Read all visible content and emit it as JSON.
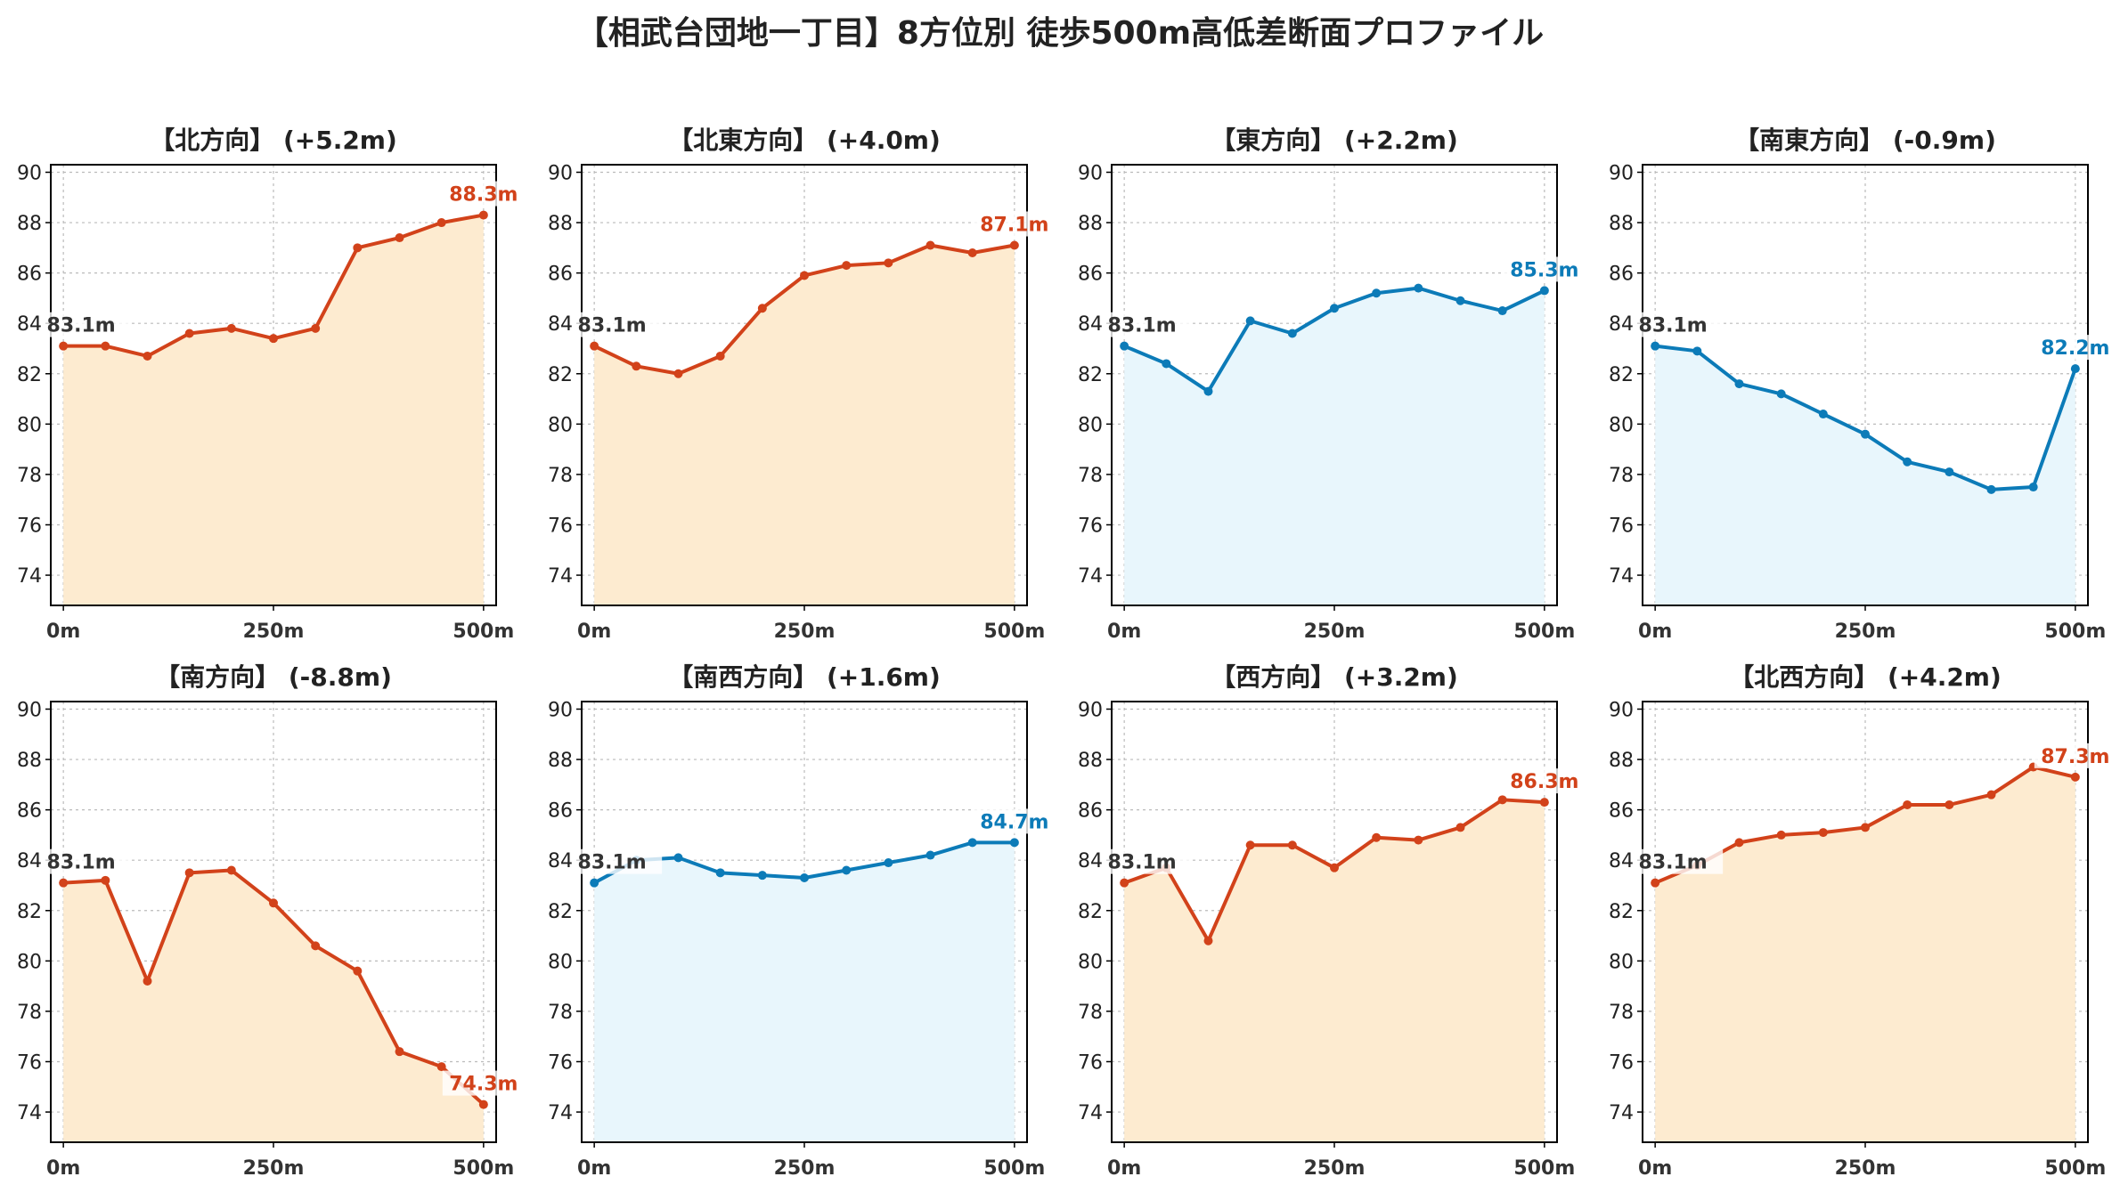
{
  "title": "【相武台団地一丁目】8方位別 徒歩500m高低差断面プロファイル",
  "colors": {
    "up_line": "#d2421a",
    "up_fill": "#fdebd0",
    "down_line": "#0c7bb8",
    "down_fill": "#e8f6fc",
    "start_label": "#333333",
    "grid": "#bbbbbb"
  },
  "chart_data": [
    {
      "type": "line",
      "title": "【北方向】 (+5.2m)",
      "trend": "up",
      "x": [
        0,
        50,
        100,
        150,
        200,
        250,
        300,
        350,
        400,
        450,
        500
      ],
      "values": [
        83.1,
        83.1,
        82.7,
        83.6,
        83.8,
        83.4,
        83.8,
        87.0,
        87.4,
        88.0,
        88.3
      ],
      "start_label": "83.1m",
      "end_label": "88.3m"
    },
    {
      "type": "line",
      "title": "【北東方向】 (+4.0m)",
      "trend": "up",
      "x": [
        0,
        50,
        100,
        150,
        200,
        250,
        300,
        350,
        400,
        450,
        500
      ],
      "values": [
        83.1,
        82.3,
        82.0,
        82.7,
        84.6,
        85.9,
        86.3,
        86.4,
        87.1,
        86.8,
        87.1
      ],
      "start_label": "83.1m",
      "end_label": "87.1m"
    },
    {
      "type": "line",
      "title": "【東方向】 (+2.2m)",
      "trend": "down",
      "x": [
        0,
        50,
        100,
        150,
        200,
        250,
        300,
        350,
        400,
        450,
        500
      ],
      "values": [
        83.1,
        82.4,
        81.3,
        84.1,
        83.6,
        84.6,
        85.2,
        85.4,
        84.9,
        84.5,
        85.3
      ],
      "start_label": "83.1m",
      "end_label": "85.3m"
    },
    {
      "type": "line",
      "title": "【南東方向】 (-0.9m)",
      "trend": "down",
      "x": [
        0,
        50,
        100,
        150,
        200,
        250,
        300,
        350,
        400,
        450,
        500
      ],
      "values": [
        83.1,
        82.9,
        81.6,
        81.2,
        80.4,
        79.6,
        78.5,
        78.1,
        77.4,
        77.5,
        82.2
      ],
      "start_label": "83.1m",
      "end_label": "82.2m"
    },
    {
      "type": "line",
      "title": "【南方向】 (-8.8m)",
      "trend": "up",
      "x": [
        0,
        50,
        100,
        150,
        200,
        250,
        300,
        350,
        400,
        450,
        500
      ],
      "values": [
        83.1,
        83.2,
        79.2,
        83.5,
        83.6,
        82.3,
        80.6,
        79.6,
        76.4,
        75.8,
        74.3
      ],
      "start_label": "83.1m",
      "end_label": "74.3m"
    },
    {
      "type": "line",
      "title": "【南西方向】 (+1.6m)",
      "trend": "down",
      "x": [
        0,
        50,
        100,
        150,
        200,
        250,
        300,
        350,
        400,
        450,
        500
      ],
      "values": [
        83.1,
        84.0,
        84.1,
        83.5,
        83.4,
        83.3,
        83.6,
        83.9,
        84.2,
        84.7,
        84.7
      ],
      "start_label": "83.1m",
      "end_label": "84.7m"
    },
    {
      "type": "line",
      "title": "【西方向】 (+3.2m)",
      "trend": "up",
      "x": [
        0,
        50,
        100,
        150,
        200,
        250,
        300,
        350,
        400,
        450,
        500
      ],
      "values": [
        83.1,
        83.7,
        80.8,
        84.6,
        84.6,
        83.7,
        84.9,
        84.8,
        85.3,
        86.4,
        86.3
      ],
      "start_label": "83.1m",
      "end_label": "86.3m"
    },
    {
      "type": "line",
      "title": "【北西方向】 (+4.2m)",
      "trend": "up",
      "x": [
        0,
        50,
        100,
        150,
        200,
        250,
        300,
        350,
        400,
        450,
        500
      ],
      "values": [
        83.1,
        83.8,
        84.7,
        85.0,
        85.1,
        85.3,
        86.2,
        86.2,
        86.6,
        87.7,
        87.3
      ],
      "start_label": "83.1m",
      "end_label": "87.3m"
    }
  ],
  "axes": {
    "y_ticks": [
      "74",
      "76",
      "78",
      "80",
      "82",
      "84",
      "86",
      "88",
      "90"
    ],
    "x_ticks": [
      "0m",
      "250m",
      "500m"
    ],
    "ylim": [
      72.8,
      90.3
    ],
    "xlim": [
      -15,
      515
    ],
    "grid": true
  }
}
